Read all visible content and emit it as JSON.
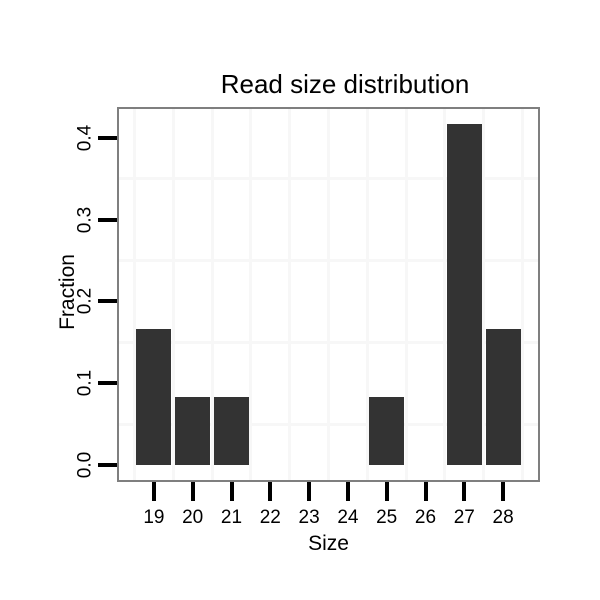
{
  "title": "Read size distribution",
  "axes": {
    "x": {
      "label": "Size"
    },
    "y": {
      "label": "Fraction"
    }
  },
  "chart_data": {
    "type": "bar",
    "title": "Read size distribution",
    "xlabel": "Size",
    "ylabel": "Fraction",
    "categories": [
      "19",
      "20",
      "21",
      "22",
      "23",
      "24",
      "25",
      "26",
      "27",
      "28"
    ],
    "values": [
      0.1667,
      0.0833,
      0.0833,
      0,
      0,
      0,
      0.0833,
      0,
      0.4167,
      0.1667
    ],
    "y_tick_labels": [
      "0.0",
      "0.1",
      "0.2",
      "0.3",
      "0.4"
    ],
    "y_tick_values": [
      0.0,
      0.1,
      0.2,
      0.3,
      0.4
    ],
    "y_minor_gridlines": [
      0.05,
      0.15,
      0.25,
      0.35
    ],
    "ylim": [
      -0.0208,
      0.4375
    ],
    "grid": "minor-only",
    "legend": "none",
    "colors": {
      "bar": "#333333",
      "panel_background": "#ffffff",
      "panel_border": "#7f7f7f",
      "gridline": "#f7f7f7",
      "tick": "#000000",
      "text": "#000000",
      "page_background": "#ffffff"
    }
  }
}
